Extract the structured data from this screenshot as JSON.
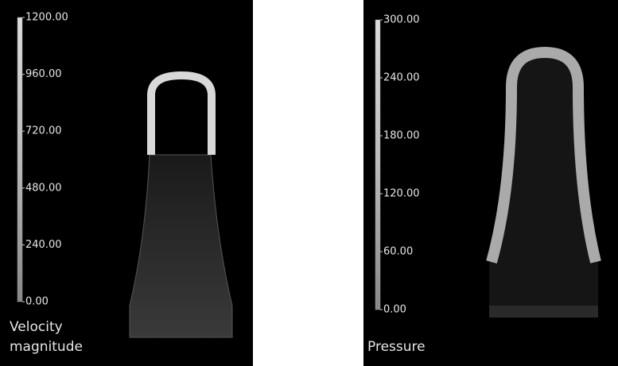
{
  "panels": [
    {
      "label": "Velocity magnitude",
      "colorbar": {
        "range": [
          0,
          1200
        ],
        "ticks": [
          {
            "value": 1200,
            "label": "1200.00"
          },
          {
            "value": 960,
            "label": "960.00"
          },
          {
            "value": 720,
            "label": "720.00"
          },
          {
            "value": 480,
            "label": "480.00"
          },
          {
            "value": 240,
            "label": "240.00"
          },
          {
            "value": 0,
            "label": "0.00"
          }
        ]
      }
    },
    {
      "label": "Pressure",
      "colorbar": {
        "range": [
          0,
          300
        ],
        "ticks": [
          {
            "value": 300,
            "label": "300.00"
          },
          {
            "value": 240,
            "label": "240.00"
          },
          {
            "value": 180,
            "label": "180.00"
          },
          {
            "value": 120,
            "label": "120.00"
          },
          {
            "value": 60,
            "label": "60.00"
          },
          {
            "value": 0,
            "label": "0.00"
          }
        ]
      }
    }
  ]
}
